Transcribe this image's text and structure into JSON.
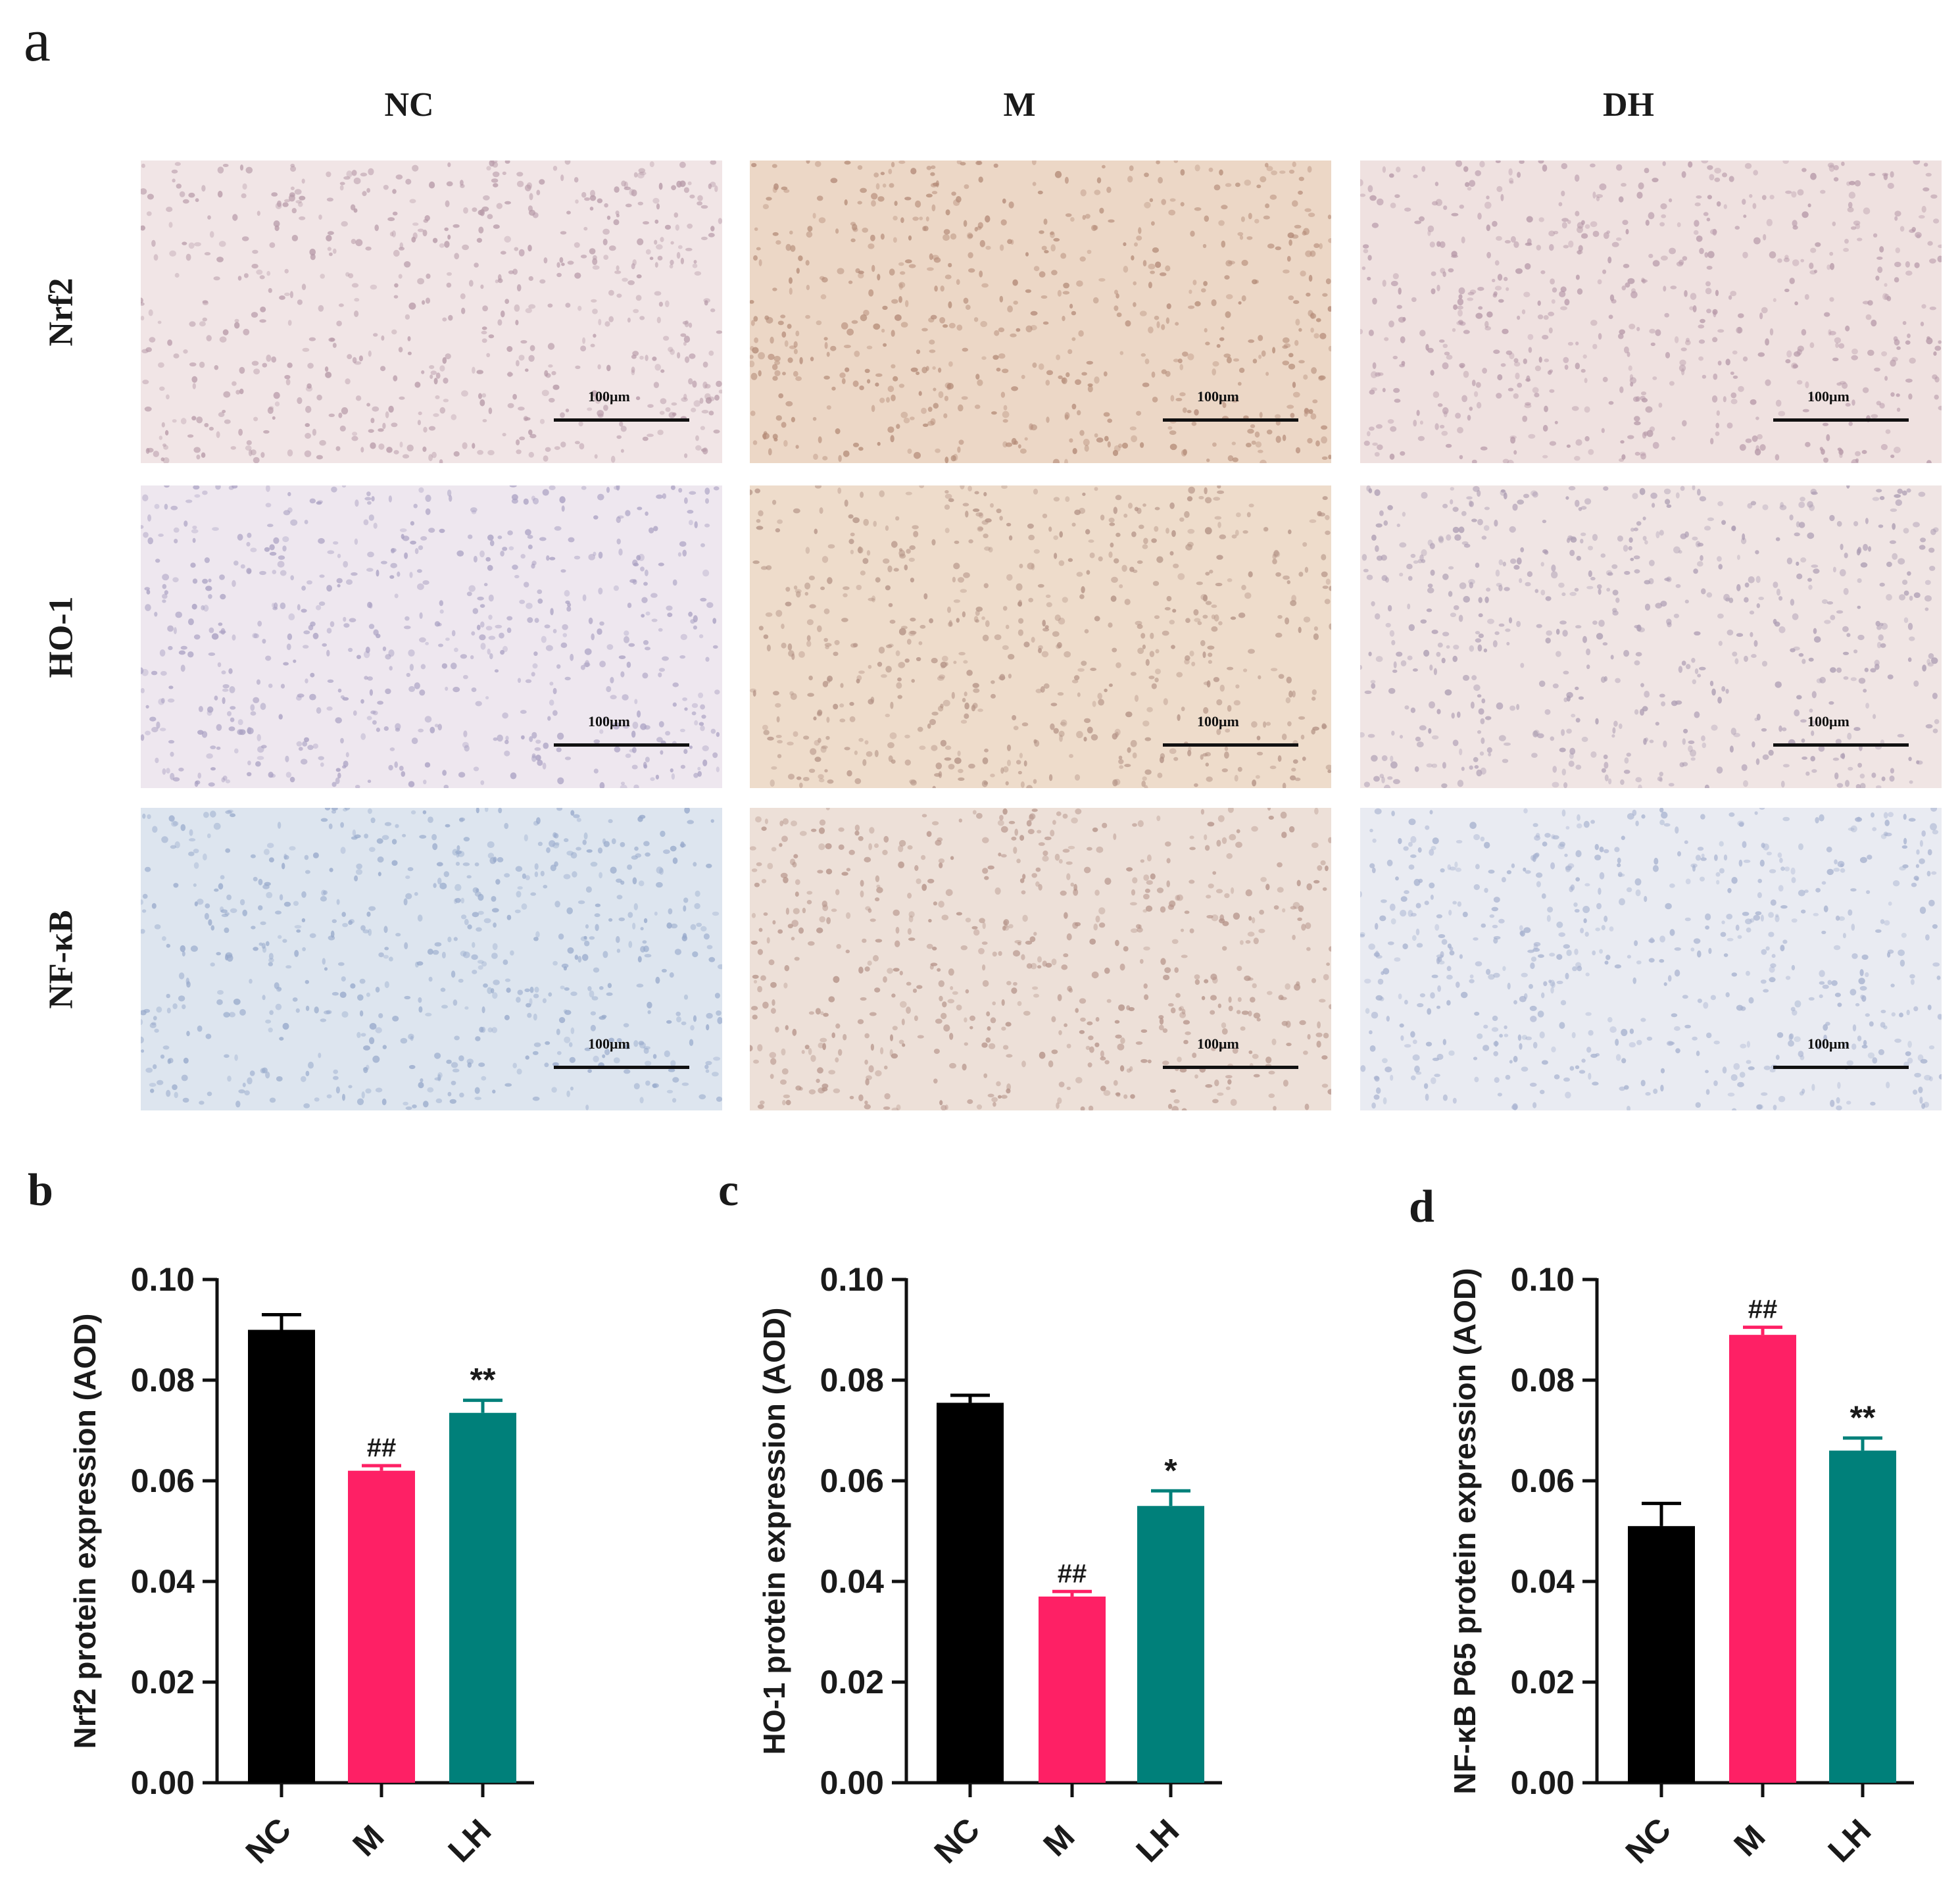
{
  "panel_a": {
    "letter": "a",
    "columns": [
      "NC",
      "M",
      "DH"
    ],
    "rows": [
      "Nrf2",
      "HO-1",
      "NF-κB"
    ],
    "scale_bar_label": "100μm",
    "tissue_tints": [
      [
        "#f1e5e6",
        "#ecd7c6",
        "#efe1e0"
      ],
      [
        "#eee7ef",
        "#eedccb",
        "#f0e5e4"
      ],
      [
        "#dde5ef",
        "#ede0d8",
        "#e9ebf2"
      ]
    ],
    "nucleus_colors": [
      [
        "#b79aa8",
        "#b48b78",
        "#b698a8"
      ],
      [
        "#a9a0c2",
        "#b39285",
        "#ad9db3"
      ],
      [
        "#97a9cb",
        "#b49288",
        "#a6b1cf"
      ]
    ]
  },
  "chart_data": [
    {
      "letter": "b",
      "type": "bar",
      "categories": [
        "NC",
        "M",
        "LH"
      ],
      "values": [
        0.09,
        0.062,
        0.0735
      ],
      "errors": [
        0.003,
        0.001,
        0.0025
      ],
      "annotations": [
        "",
        "##",
        "**"
      ],
      "colors": [
        "#000000",
        "#fe2065",
        "#00807a"
      ],
      "xlabel": "",
      "ylabel": "Nrf2 protein expression (AOD)",
      "ylim": [
        0,
        0.1
      ],
      "yticks": [
        "0.00",
        "0.02",
        "0.04",
        "0.06",
        "0.08",
        "0.10"
      ],
      "grid": false
    },
    {
      "letter": "c",
      "type": "bar",
      "categories": [
        "NC",
        "M",
        "LH"
      ],
      "values": [
        0.0755,
        0.037,
        0.055
      ],
      "errors": [
        0.0015,
        0.001,
        0.003
      ],
      "annotations": [
        "",
        "##",
        "*"
      ],
      "colors": [
        "#000000",
        "#fe2065",
        "#00807a"
      ],
      "xlabel": "",
      "ylabel": "HO-1 protein expression (AOD)",
      "ylim": [
        0,
        0.1
      ],
      "yticks": [
        "0.00",
        "0.02",
        "0.04",
        "0.06",
        "0.08",
        "0.10"
      ],
      "grid": false
    },
    {
      "letter": "d",
      "type": "bar",
      "categories": [
        "NC",
        "M",
        "LH"
      ],
      "values": [
        0.051,
        0.089,
        0.066
      ],
      "errors": [
        0.0045,
        0.0015,
        0.0025
      ],
      "annotations": [
        "",
        "##",
        "**"
      ],
      "colors": [
        "#000000",
        "#fe2065",
        "#00807a"
      ],
      "xlabel": "",
      "ylabel": "NF-κB P65 protein expression (AOD)",
      "ylim": [
        0,
        0.1
      ],
      "yticks": [
        "0.00",
        "0.02",
        "0.04",
        "0.06",
        "0.08",
        "0.10"
      ],
      "grid": false
    }
  ]
}
